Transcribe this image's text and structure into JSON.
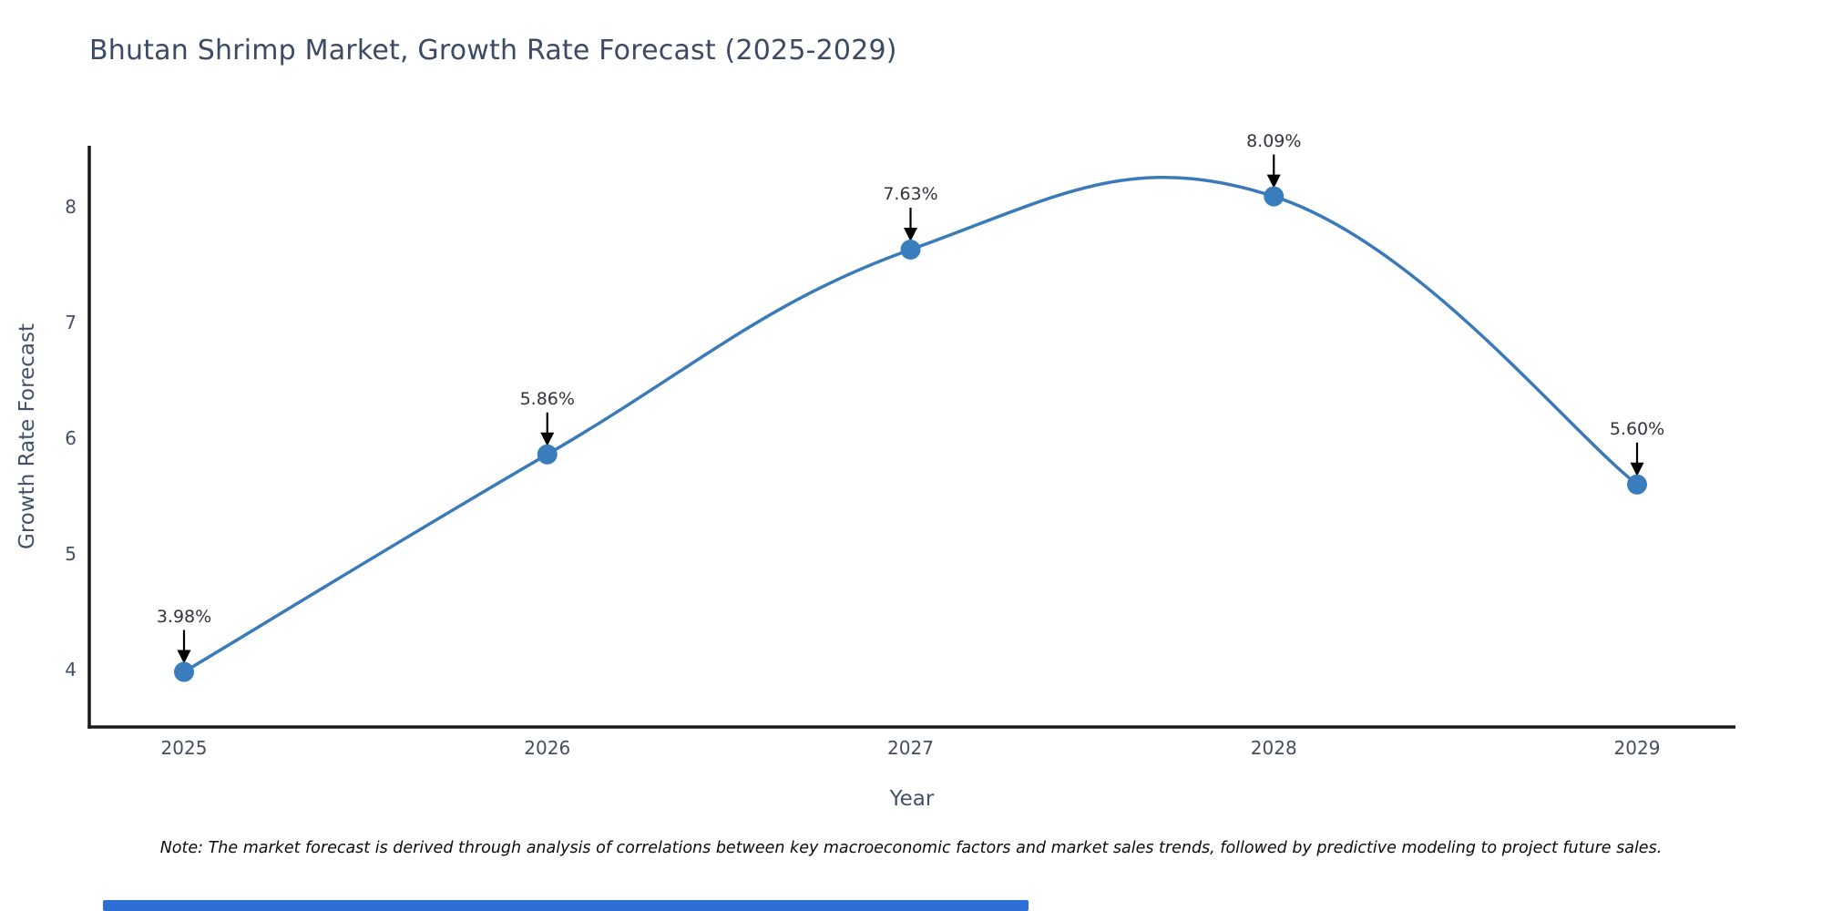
{
  "chart_data": {
    "type": "line",
    "line_shape": "spline",
    "title": "Bhutan Shrimp Market, Growth Rate Forecast (2025-2029)",
    "xlabel": "Year",
    "ylabel": "Growth Rate Forecast",
    "categories": [
      "2025",
      "2026",
      "2027",
      "2028",
      "2029"
    ],
    "values": [
      3.98,
      5.86,
      7.63,
      8.09,
      5.6
    ],
    "point_labels": [
      "3.98%",
      "5.86%",
      "7.63%",
      "8.09%",
      "5.60%"
    ],
    "yticks": [
      4,
      5,
      6,
      7,
      8
    ],
    "ylim": [
      3.5,
      8.55
    ],
    "grid": false,
    "legend_position": "none"
  },
  "note": "Note: The market forecast is derived through analysis of correlations between key macroeconomic factors and market sales trends, followed by predictive modeling to project future sales.",
  "colors": {
    "line": "#3a7ab8",
    "marker": "#3a7dbd",
    "axis_line": "#1a1a1a",
    "arrow": "#000000",
    "title_text": "#3d4a63",
    "axis_title_text": "#42506a",
    "tick_text": "#454e60",
    "annotation_text": "#30343c",
    "note_text": "#0b0b0b",
    "scrollbar": "#2e6fd6",
    "background": "#ffffff"
  }
}
